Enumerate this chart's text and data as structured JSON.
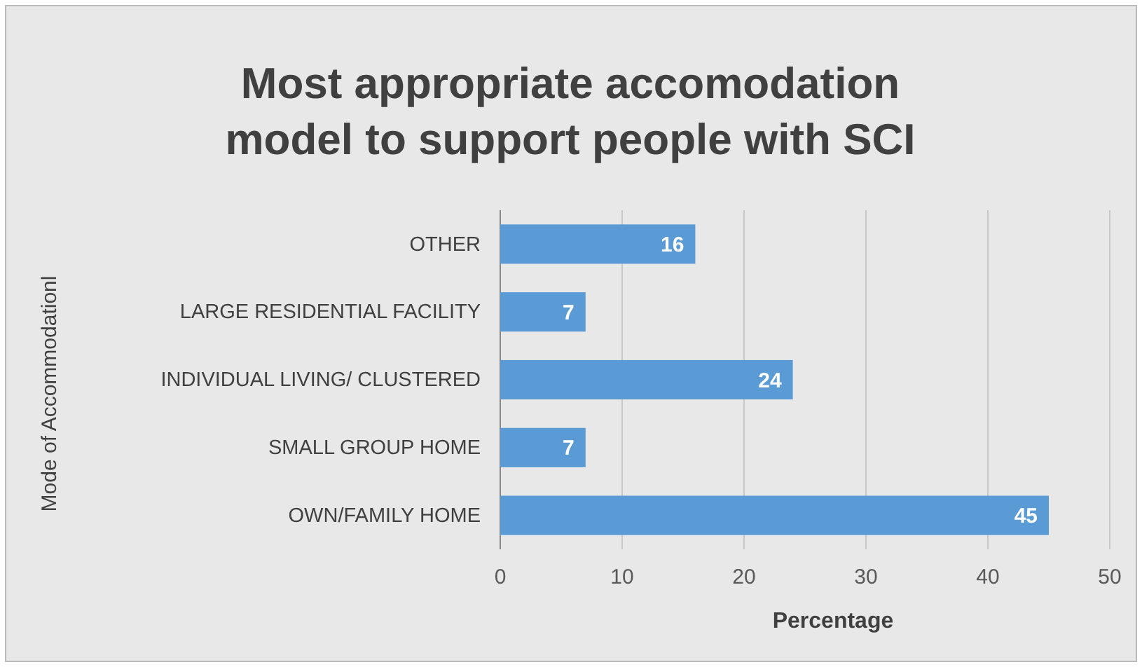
{
  "chart_data": {
    "type": "bar",
    "orientation": "horizontal",
    "title": "Most appropriate accomodation model to support people with SCI",
    "xlabel": "Percentage",
    "ylabel": "Mode of Accommodationl",
    "categories": [
      "OTHER",
      "LARGE RESIDENTIAL FACILITY",
      "INDIVIDUAL LIVING/ CLUSTERED",
      "SMALL GROUP HOME",
      "OWN/FAMILY HOME"
    ],
    "values": [
      16,
      7,
      24,
      7,
      45
    ],
    "color": "#5b9bd5",
    "data_labels": true,
    "grid": "x",
    "xlim": [
      0,
      50
    ],
    "xticks": [
      0,
      10,
      20,
      30,
      40,
      50
    ]
  }
}
